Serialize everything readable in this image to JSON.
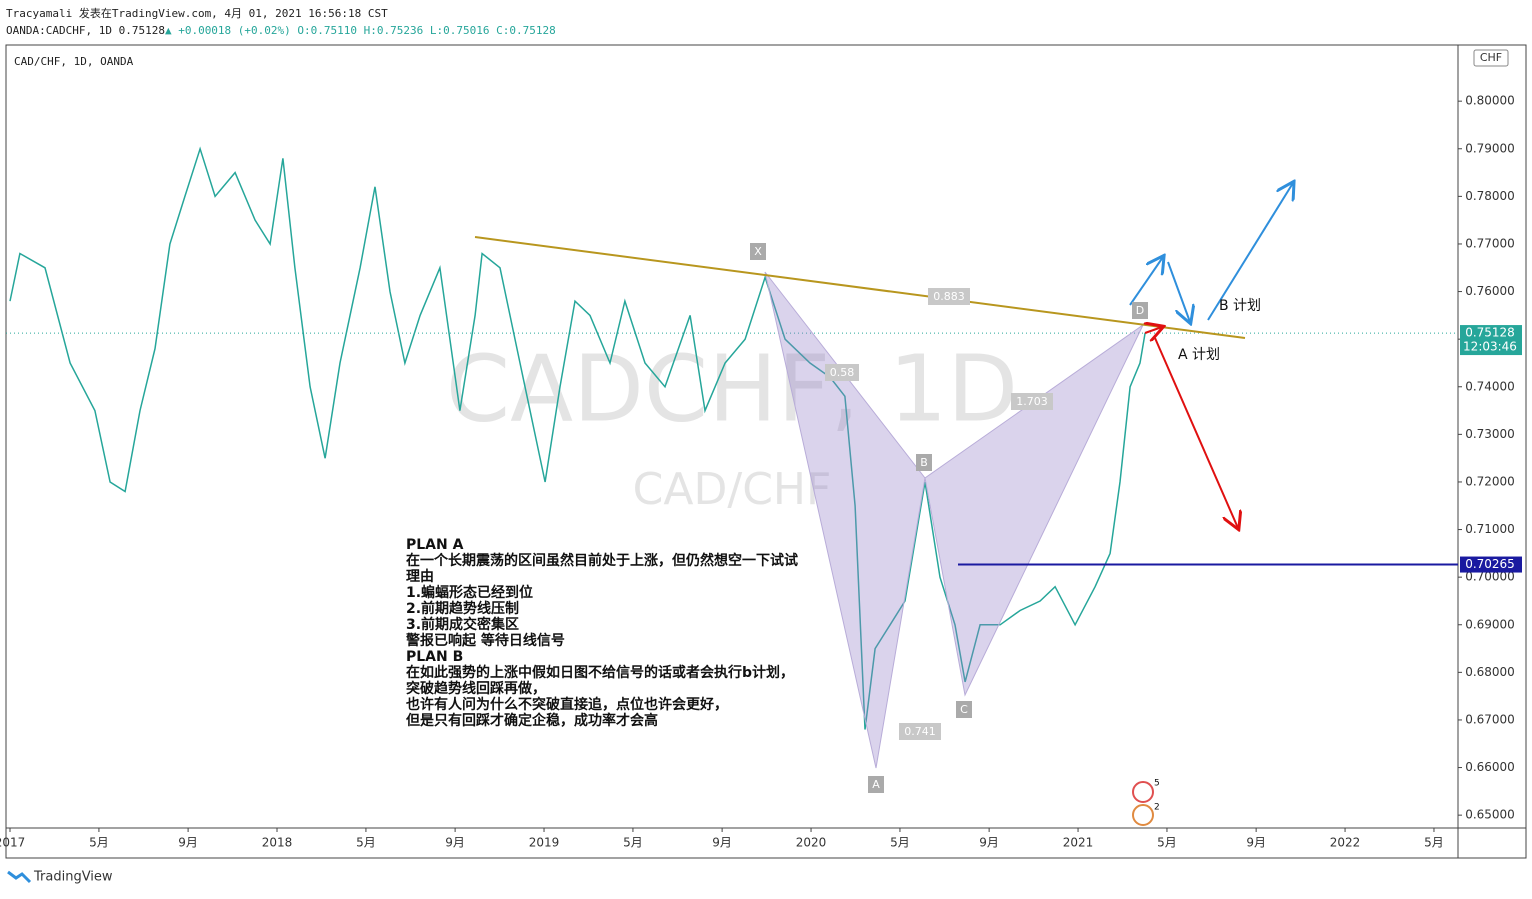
{
  "header": {
    "line1": "Tracyamali 发表在TradingView.com, 4月 01, 2021 16:56:18 CST",
    "symbol": "OANDA:CADCHF, 1D",
    "last": "0.75128",
    "change": "▲ +0.00018 (+0.02%)",
    "ohlc": "O:0.75110 H:0.75236 L:0.75016 C:0.75128"
  },
  "chart_data": {
    "type": "line",
    "legend": "CAD/CHF, 1D, OANDA",
    "watermark": "CADCHF, 1D",
    "watermark_sub": "CAD/CHF",
    "currency": "CHF",
    "color": "#26a69a",
    "x": [
      2017.0,
      2017.037,
      2017.131,
      2017.225,
      2017.318,
      2017.375,
      2017.431,
      2017.487,
      2017.543,
      2017.599,
      2017.655,
      2017.712,
      2017.768,
      2017.843,
      2017.918,
      2017.974,
      2018.022,
      2018.067,
      2018.124,
      2018.18,
      2018.236,
      2018.311,
      2018.367,
      2018.423,
      2018.479,
      2018.536,
      2018.61,
      2018.685,
      2018.742,
      2018.768,
      2018.835,
      2018.91,
      2019.004,
      2019.06,
      2019.116,
      2019.172,
      2019.247,
      2019.303,
      2019.378,
      2019.453,
      2019.547,
      2019.603,
      2019.678,
      2019.753,
      2019.828,
      2019.903,
      2019.996,
      2020.071,
      2020.127,
      2020.165,
      2020.202,
      2020.24,
      2020.296,
      2020.352,
      2020.427,
      2020.483,
      2020.539,
      2020.577,
      2020.633,
      2020.708,
      2020.783,
      2020.858,
      2020.914,
      2020.989,
      2021.064,
      2021.12,
      2021.157,
      2021.195,
      2021.232,
      2021.251
    ],
    "values": [
      0.758,
      0.768,
      0.765,
      0.745,
      0.735,
      0.72,
      0.718,
      0.735,
      0.748,
      0.77,
      0.78,
      0.79,
      0.78,
      0.785,
      0.775,
      0.77,
      0.788,
      0.765,
      0.74,
      0.725,
      0.745,
      0.765,
      0.782,
      0.76,
      0.745,
      0.755,
      0.765,
      0.735,
      0.755,
      0.768,
      0.765,
      0.745,
      0.72,
      0.74,
      0.758,
      0.755,
      0.745,
      0.758,
      0.745,
      0.74,
      0.755,
      0.735,
      0.745,
      0.75,
      0.763,
      0.75,
      0.745,
      0.742,
      0.738,
      0.715,
      0.668,
      0.685,
      0.69,
      0.695,
      0.72,
      0.7,
      0.69,
      0.678,
      0.69,
      0.69,
      0.693,
      0.695,
      0.698,
      0.69,
      0.698,
      0.705,
      0.72,
      0.74,
      0.745,
      0.7513
    ],
    "xlim": [
      2016.985,
      2022.423
    ],
    "xticks": [
      2017,
      {
        "value": 2017.333,
        "label": "5月"
      },
      {
        "value": 2017.667,
        "label": "9月"
      },
      2018,
      {
        "value": 2018.333,
        "label": "5月"
      },
      {
        "value": 2018.667,
        "label": "9月"
      },
      2019,
      {
        "value": 2019.333,
        "label": "5月"
      },
      {
        "value": 2019.667,
        "label": "9月"
      },
      2020,
      {
        "value": 2020.333,
        "label": "5月"
      },
      {
        "value": 2020.667,
        "label": "9月"
      },
      2021,
      {
        "value": 2021.333,
        "label": "5月"
      },
      {
        "value": 2021.667,
        "label": "9月"
      },
      2022,
      {
        "value": 2022.333,
        "label": "5月"
      }
    ],
    "ylim": [
      0.6473,
      0.8118
    ],
    "yticks": [
      {
        "value": 0.65,
        "label": "0.65000"
      },
      {
        "value": 0.66,
        "label": "0.66000"
      },
      {
        "value": 0.67,
        "label": "0.67000"
      },
      {
        "value": 0.68,
        "label": "0.68000"
      },
      {
        "value": 0.69,
        "label": "0.69000"
      },
      {
        "value": 0.7,
        "label": "0.70000"
      },
      {
        "value": 0.71,
        "label": "0.71000"
      },
      {
        "value": 0.72,
        "label": "0.72000"
      },
      {
        "value": 0.73,
        "label": "0.73000"
      },
      {
        "value": 0.74,
        "label": "0.74000"
      },
      {
        "value": 0.75,
        "label": "0.75000"
      },
      {
        "value": 0.76,
        "label": "0.76000"
      },
      {
        "value": 0.77,
        "label": "0.77000"
      },
      {
        "value": 0.78,
        "label": "0.78000"
      },
      {
        "value": 0.79,
        "label": "0.79000"
      },
      {
        "value": 0.8,
        "label": "0.80000"
      }
    ],
    "last_price": 0.75128,
    "countdown": "12:03:46",
    "level": 0.70265,
    "pattern_points": [
      "X",
      "A",
      "B",
      "C",
      "D"
    ],
    "ratios": [
      "0.883",
      "0.58",
      "1.703",
      "0.741"
    ],
    "plan_labels": [
      "B 计划",
      "A 计划"
    ],
    "notes": [
      "PLAN A",
      "在一个长期震荡的区间虽然目前处于上涨，但仍然想空一下试试",
      "理由",
      "1.蝙蝠形态已经到位",
      "2.前期趋势线压制",
      "3.前期成交密集区",
      "警报已响起 等待日线信号",
      "PLAN B",
      "在如此强势的上涨中假如日图不给信号的话或者会执行b计划，",
      "突破趋势线回踩再做，",
      "也许有人问为什么不突破直接追，点位也许会更好，",
      "但是只有回踩才确定企稳，成功率才会高"
    ],
    "events": [
      "5",
      "2"
    ]
  },
  "footer": "TradingView"
}
